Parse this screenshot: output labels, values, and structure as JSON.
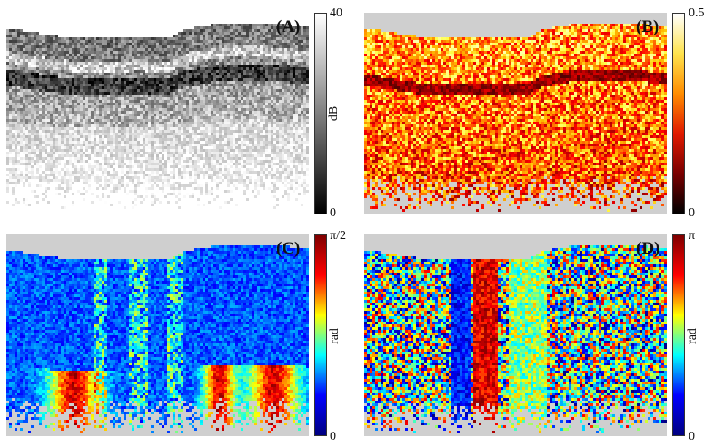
{
  "panels": [
    {
      "id": "A",
      "label": "(A)",
      "colorbar": {
        "top": "40",
        "bottom": "0",
        "unit": "dB",
        "colors": [
          "#000000",
          "#ffffff"
        ]
      },
      "style": "gray"
    },
    {
      "id": "B",
      "label": "(B)",
      "colorbar": {
        "top": "0.5",
        "bottom": "0",
        "unit": "",
        "colors": [
          "#000000",
          "#7a0000",
          "#e01a00",
          "#ff8c00",
          "#ffe34d",
          "#ffffff"
        ]
      },
      "style": "hot"
    },
    {
      "id": "C",
      "label": "(C)",
      "colorbar": {
        "top": "π/2",
        "bottom": "0",
        "unit": "rad",
        "colors": [
          "#00007f",
          "#0000ff",
          "#00ffff",
          "#ffff00",
          "#ff0000",
          "#7f0000"
        ]
      },
      "style": "jet-blue"
    },
    {
      "id": "D",
      "label": "(D)",
      "colorbar": {
        "top": "π",
        "bottom": "0",
        "unit": "rad",
        "colors": [
          "#00007f",
          "#0000ff",
          "#00ffff",
          "#ffff00",
          "#ff0000",
          "#7f0000"
        ]
      },
      "style": "jet-mixed"
    }
  ]
}
